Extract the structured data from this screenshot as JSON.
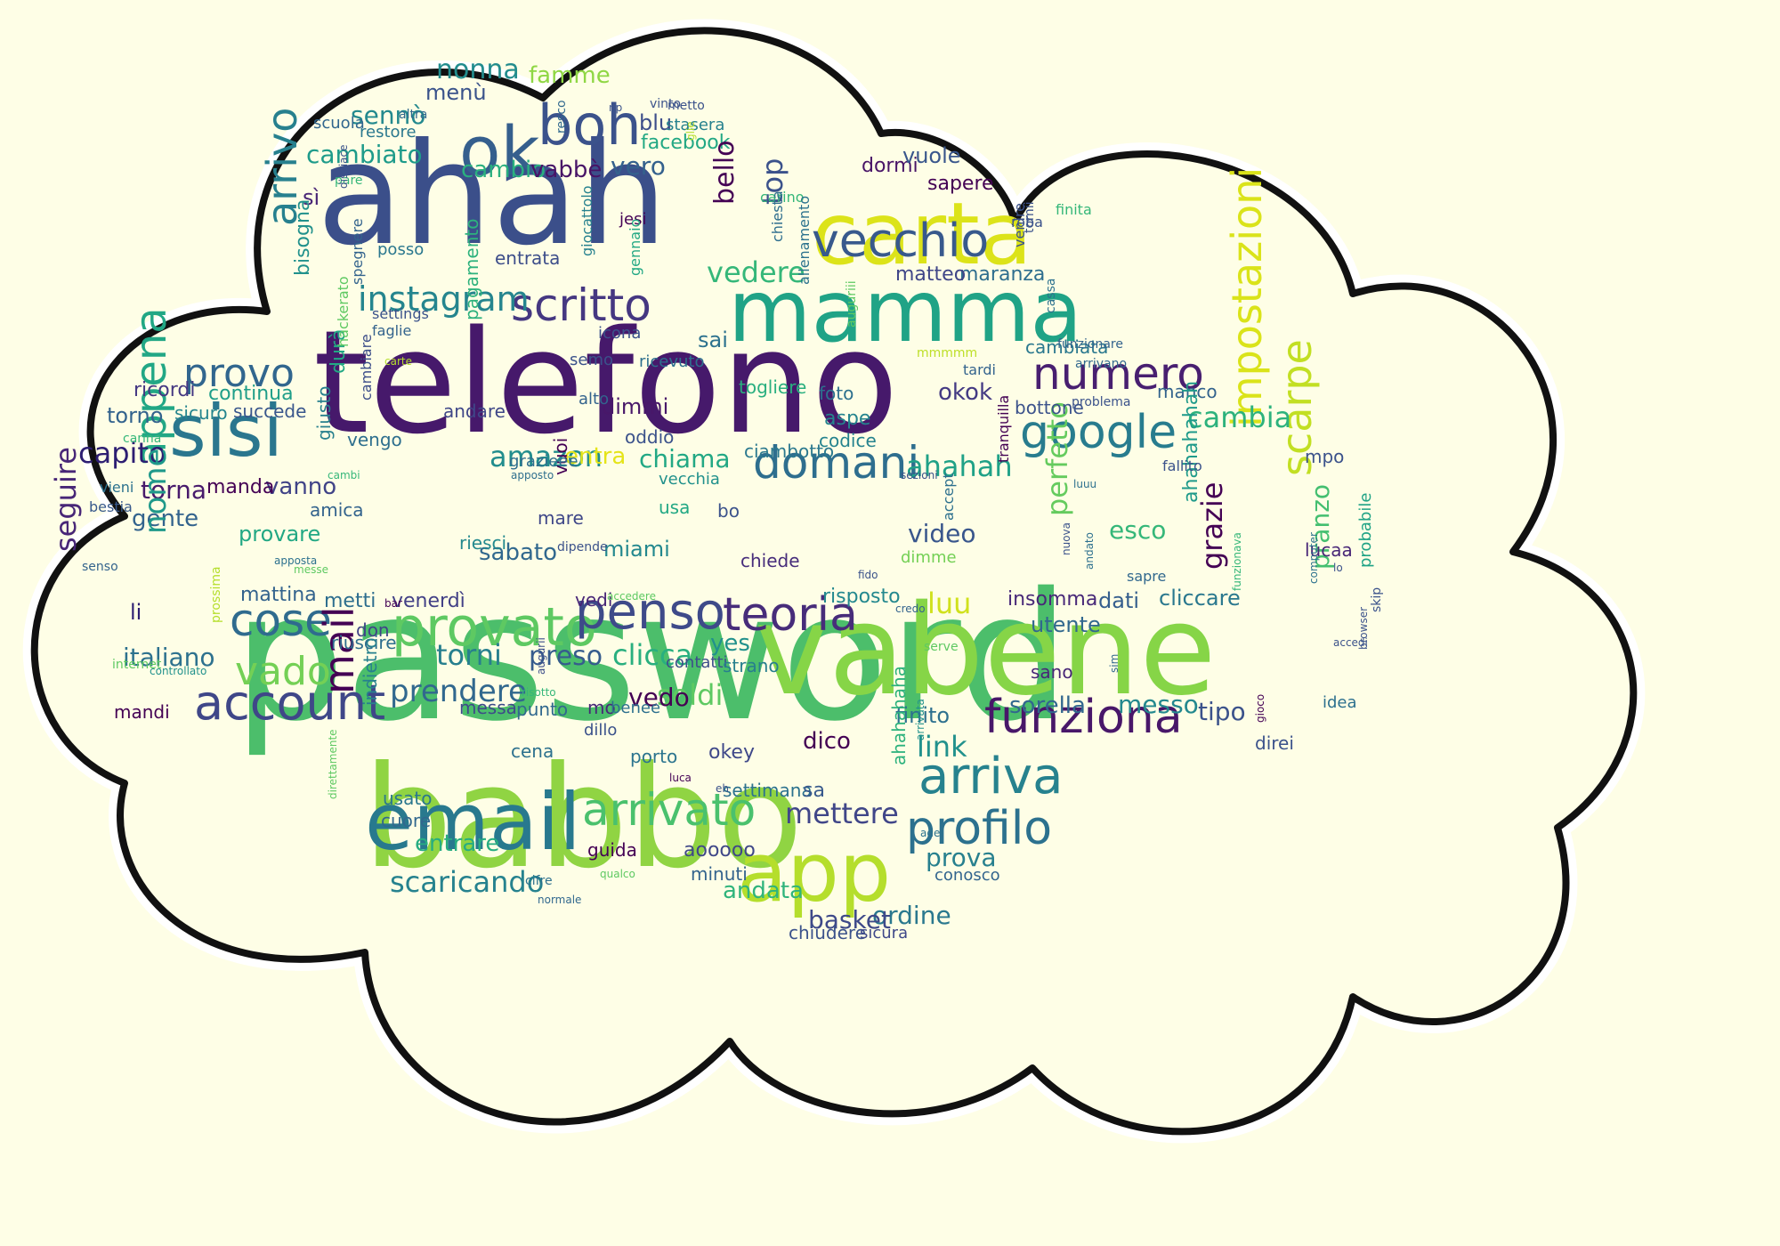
{
  "palette": {
    "background": "#fefee6",
    "cloud_fill": "#fefee6",
    "cloud_outline": "#111111",
    "cloud_halo": "#ffffff",
    "viridis_colors": [
      "#440154",
      "#3b528b",
      "#21918c",
      "#5ec962",
      "#fde725"
    ]
  },
  "words": [
    {
      "text": "password",
      "color": "#4cbe6b"
    },
    {
      "text": "telefono",
      "color": "#46196b"
    },
    {
      "text": "babbo",
      "color": "#90d443"
    },
    {
      "text": "ahah",
      "color": "#3b4f8a"
    },
    {
      "text": "vabene",
      "color": "#86d547"
    },
    {
      "text": "mamma",
      "color": "#20a386"
    },
    {
      "text": "carta",
      "color": "#dce319"
    },
    {
      "text": "email",
      "color": "#28798e"
    },
    {
      "text": "app",
      "color": "#b5de2c"
    },
    {
      "text": "sisi",
      "color": "#2a768e"
    },
    {
      "text": "ok",
      "color": "#355f8d"
    },
    {
      "text": "boh",
      "color": "#3b528b"
    },
    {
      "text": "vecchio",
      "color": "#38598c"
    },
    {
      "text": "scritto",
      "color": "#453781"
    },
    {
      "text": "numero",
      "color": "#481f70"
    },
    {
      "text": "google",
      "color": "#287c8e"
    },
    {
      "text": "domani",
      "color": "#2e6e8e"
    },
    {
      "text": "provato",
      "color": "#5ec962"
    },
    {
      "text": "penso",
      "color": "#3e4a89"
    },
    {
      "text": "teoria",
      "color": "#472c7a"
    },
    {
      "text": "funziona",
      "color": "#481769"
    },
    {
      "text": "arriva",
      "color": "#26828e"
    },
    {
      "text": "profilo",
      "color": "#2c718e"
    },
    {
      "text": "arrivato",
      "color": "#4ac16d"
    },
    {
      "text": "account",
      "color": "#3f4788"
    },
    {
      "text": "cose",
      "color": "#2f6b8e"
    },
    {
      "text": "impostazioni",
      "color": "#dae319"
    },
    {
      "text": "scarpe",
      "color": "#c2df23"
    },
    {
      "text": "appena",
      "color": "#22a785"
    },
    {
      "text": "instagram",
      "color": "#25858e"
    },
    {
      "text": "provo",
      "color": "#31668e"
    },
    {
      "text": "arrivo",
      "color": "#27808e"
    },
    {
      "text": "mail",
      "color": "#440154"
    },
    {
      "text": "vado",
      "color": "#74d055"
    },
    {
      "text": "prendere",
      "color": "#31688e"
    },
    {
      "text": "amazon",
      "color": "#228d8d"
    },
    {
      "text": "ahahah",
      "color": "#1fa187"
    },
    {
      "text": "cambia",
      "color": "#2db27d"
    },
    {
      "text": "grazie",
      "color": "#440154"
    },
    {
      "text": "perfetto",
      "color": "#65cb5e"
    },
    {
      "text": "luu",
      "color": "#d0e11c"
    },
    {
      "text": "torni",
      "color": "#277f8e"
    },
    {
      "text": "preso",
      "color": "#365c8d"
    },
    {
      "text": "clicca",
      "color": "#29af7f"
    },
    {
      "text": "soldi",
      "color": "#5ec962"
    },
    {
      "text": "link",
      "color": "#21918c"
    },
    {
      "text": "mettere",
      "color": "#404688"
    },
    {
      "text": "nonna",
      "color": "#228c8d"
    },
    {
      "text": "famme",
      "color": "#8fd744"
    },
    {
      "text": "menù",
      "color": "#3a538b"
    },
    {
      "text": "sennò",
      "color": "#23898e"
    },
    {
      "text": "cambiato",
      "color": "#1e9b8a"
    },
    {
      "text": "cambio",
      "color": "#2ab07f"
    },
    {
      "text": "vabbè",
      "color": "#481467"
    },
    {
      "text": "vero",
      "color": "#34618d"
    },
    {
      "text": "facebook",
      "color": "#22a884"
    },
    {
      "text": "blu",
      "color": "#3d4e8a"
    },
    {
      "text": "top",
      "color": "#3b528b"
    },
    {
      "text": "bello",
      "color": "#440154"
    },
    {
      "text": "vedere",
      "color": "#35b779"
    },
    {
      "text": "sì",
      "color": "#482576"
    },
    {
      "text": "capito",
      "color": "#2d1e72"
    },
    {
      "text": "torna",
      "color": "#481a6c"
    },
    {
      "text": "vanno",
      "color": "#404387"
    },
    {
      "text": "gente",
      "color": "#33638d"
    },
    {
      "text": "nome",
      "color": "#1f998a"
    },
    {
      "text": "seguire",
      "color": "#482677"
    },
    {
      "text": "italiano",
      "color": "#2d718e"
    },
    {
      "text": "torno",
      "color": "#33638d"
    },
    {
      "text": "ricordi",
      "color": "#453882"
    },
    {
      "text": "entra",
      "color": "#e5e419"
    },
    {
      "text": "chiama",
      "color": "#22a884"
    },
    {
      "text": "dimmi",
      "color": "#481769"
    },
    {
      "text": "okok",
      "color": "#443a83"
    },
    {
      "text": "sai",
      "color": "#2c718e"
    },
    {
      "text": "video",
      "color": "#39568c"
    },
    {
      "text": "esco",
      "color": "#35b779"
    },
    {
      "text": "sabato",
      "color": "#31688e"
    },
    {
      "text": "miami",
      "color": "#23888e"
    },
    {
      "text": "sorella",
      "color": "#31678e"
    },
    {
      "text": "messo",
      "color": "#23888e"
    },
    {
      "text": "tipo",
      "color": "#3b528b"
    },
    {
      "text": "prova",
      "color": "#27808e"
    },
    {
      "text": "ordine",
      "color": "#2a788e"
    },
    {
      "text": "andata",
      "color": "#2fb47c"
    },
    {
      "text": "scaricando",
      "color": "#26828e"
    },
    {
      "text": "entrare",
      "color": "#27ad81"
    },
    {
      "text": "yes",
      "color": "#21918c"
    },
    {
      "text": "basket",
      "color": "#3e4989"
    },
    {
      "text": "vedo",
      "color": "#440154"
    },
    {
      "text": "finito",
      "color": "#2d708e"
    },
    {
      "text": "pranzo",
      "color": "#44bf70"
    },
    {
      "text": "dati",
      "color": "#355e8d"
    },
    {
      "text": "cliccare",
      "color": "#2a788e"
    },
    {
      "text": "insomma",
      "color": "#482878"
    },
    {
      "text": "utente",
      "color": "#31688e"
    },
    {
      "text": "mattina",
      "color": "#33638d"
    },
    {
      "text": "metti",
      "color": "#2e6e8e"
    },
    {
      "text": "venerdì",
      "color": "#424086"
    },
    {
      "text": "risposto",
      "color": "#23888e"
    },
    {
      "text": "provare",
      "color": "#22a884"
    },
    {
      "text": "manda",
      "color": "#440154"
    },
    {
      "text": "durà",
      "color": "#22a884"
    },
    {
      "text": "bisogna",
      "color": "#21918c"
    },
    {
      "text": "continua",
      "color": "#1f9e89"
    },
    {
      "text": "succede",
      "color": "#39568c"
    },
    {
      "text": "sicuro",
      "color": "#25858e"
    },
    {
      "text": "vengo",
      "color": "#2e6f8e"
    },
    {
      "text": "andare",
      "color": "#3f4788"
    },
    {
      "text": "pagamento",
      "color": "#2db27d"
    },
    {
      "text": "oddio",
      "color": "#3b528b"
    },
    {
      "text": "togliere",
      "color": "#29af7f"
    },
    {
      "text": "foto",
      "color": "#2d708e"
    },
    {
      "text": "aspe",
      "color": "#25848e"
    },
    {
      "text": "codice",
      "color": "#25838e"
    },
    {
      "text": "ciambotto",
      "color": "#2a788e"
    },
    {
      "text": "bottone",
      "color": "#3b528b"
    },
    {
      "text": "manco",
      "color": "#33638d"
    },
    {
      "text": "cambiata",
      "color": "#2a788e"
    },
    {
      "text": "maranza",
      "color": "#2e6e8e"
    },
    {
      "text": "matteo",
      "color": "#404688"
    },
    {
      "text": "dormi",
      "color": "#481467"
    },
    {
      "text": "vuole",
      "color": "#39568c"
    },
    {
      "text": "sapere",
      "color": "#440154"
    },
    {
      "text": "ahahahahah",
      "color": "#1f9a8a"
    },
    {
      "text": "ahahahaha",
      "color": "#2db27d"
    },
    {
      "text": "chiede",
      "color": "#472d7b"
    },
    {
      "text": "dimme",
      "color": "#74d055"
    },
    {
      "text": "usa",
      "color": "#22a884"
    },
    {
      "text": "bo",
      "color": "#3b528b"
    },
    {
      "text": "contatti",
      "color": "#3d4e8a"
    },
    {
      "text": "strano",
      "color": "#277f8e"
    },
    {
      "text": "aooooo",
      "color": "#3f4788"
    },
    {
      "text": "minuti",
      "color": "#33638d"
    },
    {
      "text": "settimana",
      "color": "#2c728e"
    },
    {
      "text": "okey",
      "color": "#3f4889"
    },
    {
      "text": "porto",
      "color": "#2b748e"
    },
    {
      "text": "dico",
      "color": "#440154"
    },
    {
      "text": "sa",
      "color": "#38598c"
    },
    {
      "text": "chiudere",
      "color": "#3b528b"
    },
    {
      "text": "sicura",
      "color": "#3f4889"
    },
    {
      "text": "cena",
      "color": "#2d718e"
    },
    {
      "text": "punto",
      "color": "#31688e"
    },
    {
      "text": "messa",
      "color": "#3e4a89"
    },
    {
      "text": "usato",
      "color": "#2a778e"
    },
    {
      "text": "cuore",
      "color": "#31688e"
    },
    {
      "text": "guida",
      "color": "#440154"
    },
    {
      "text": "conosco",
      "color": "#32648e"
    },
    {
      "text": "riesci",
      "color": "#23898e"
    },
    {
      "text": "vuoi",
      "color": "#440154"
    },
    {
      "text": "vedi",
      "color": "#482677"
    },
    {
      "text": "don",
      "color": "#404387"
    },
    {
      "text": "riuscire",
      "color": "#2e6e8e"
    },
    {
      "text": "mare",
      "color": "#3f4788"
    },
    {
      "text": "amica",
      "color": "#33638d"
    },
    {
      "text": "giusto",
      "color": "#27808e"
    },
    {
      "text": "vecchia",
      "color": "#21918c"
    },
    {
      "text": "indietro",
      "color": "#27808e"
    },
    {
      "text": "dillo",
      "color": "#3b528b"
    },
    {
      "text": "mo",
      "color": "#482878"
    },
    {
      "text": "benee",
      "color": "#2d708e"
    },
    {
      "text": "grazieee",
      "color": "#2e6e8e"
    },
    {
      "text": "sano",
      "color": "#482677"
    },
    {
      "text": "li",
      "color": "#2d1e72"
    },
    {
      "text": "mpo",
      "color": "#3b528b"
    },
    {
      "text": "lucaa",
      "color": "#482677"
    },
    {
      "text": "probabile",
      "color": "#20a386"
    },
    {
      "text": "mandi",
      "color": "#440154"
    },
    {
      "text": "direi",
      "color": "#3b528b"
    },
    {
      "text": "idea",
      "color": "#2d708e"
    },
    {
      "text": "alto",
      "color": "#33638d"
    },
    {
      "text": "scuola",
      "color": "#31668e"
    },
    {
      "text": "restore",
      "color": "#2a788e"
    },
    {
      "text": "stasera",
      "color": "#26818e"
    },
    {
      "text": "entrata",
      "color": "#3d4e8a"
    },
    {
      "text": "posso",
      "color": "#2a778e"
    },
    {
      "text": "jesi",
      "color": "#440154"
    },
    {
      "text": "semo",
      "color": "#3b528b"
    },
    {
      "text": "icona",
      "color": "#3b528b"
    },
    {
      "text": "ricevuto",
      "color": "#2d708e"
    },
    {
      "text": "sapre",
      "color": "#31688e"
    },
    {
      "text": "fallito",
      "color": "#3b528b"
    },
    {
      "text": "vieni",
      "color": "#2c728e"
    },
    {
      "text": "bestia",
      "color": "#38598c"
    },
    {
      "text": "tranquilla",
      "color": "#440154"
    },
    {
      "text": "accept",
      "color": "#2d708e"
    },
    {
      "text": "carino",
      "color": "#35b779"
    },
    {
      "text": "chiesta",
      "color": "#2e6e8e"
    },
    {
      "text": "roba",
      "color": "#3b528b"
    },
    {
      "text": "finita",
      "color": "#35b779"
    },
    {
      "text": "funzionare",
      "color": "#33638d"
    },
    {
      "text": "arrivano",
      "color": "#31688e"
    },
    {
      "text": "problema",
      "color": "#3b528b"
    },
    {
      "text": "cassa",
      "color": "#2c718e"
    },
    {
      "text": "gennaio",
      "color": "#22a884"
    },
    {
      "text": "giocattolo",
      "color": "#26818e"
    },
    {
      "text": "spegnere",
      "color": "#33638d"
    },
    {
      "text": "settings",
      "color": "#3b528b"
    },
    {
      "text": "faglie",
      "color": "#33638d"
    },
    {
      "text": "hackerato",
      "color": "#5ec962"
    },
    {
      "text": "cambiare",
      "color": "#3d4e8a"
    },
    {
      "text": "allenamento",
      "color": "#2c728e"
    },
    {
      "text": "venire",
      "color": "#3b528b"
    },
    {
      "text": "tardi",
      "color": "#33638d"
    },
    {
      "text": "mmmmm",
      "color": "#bddf26"
    },
    {
      "text": "altra",
      "color": "#31688e"
    },
    {
      "text": "vinto",
      "color": "#3b528b"
    },
    {
      "text": "metto",
      "color": "#3b528b"
    },
    {
      "text": "resco",
      "color": "#31688e"
    },
    {
      "text": "pare",
      "color": "#35b779"
    },
    {
      "text": "dispiace",
      "color": "#3b528b"
    },
    {
      "text": "tomii",
      "color": "#3b528b"
    },
    {
      "text": "auguriii",
      "color": "#5ec962"
    },
    {
      "text": "carte",
      "color": "#b5de2c"
    },
    {
      "text": "carina",
      "color": "#35b779"
    },
    {
      "text": "cambi",
      "color": "#35b779"
    },
    {
      "text": "apposta",
      "color": "#2c718e"
    },
    {
      "text": "apposto",
      "color": "#2e6e8e"
    },
    {
      "text": "sezioni",
      "color": "#3b528b"
    },
    {
      "text": "senso",
      "color": "#33638d"
    },
    {
      "text": "prossima",
      "color": "#b5de2c"
    },
    {
      "text": "internet",
      "color": "#5ec962"
    },
    {
      "text": "controllato",
      "color": "#21918c"
    },
    {
      "text": "bar",
      "color": "#440154"
    },
    {
      "text": "messe",
      "color": "#5ec962"
    },
    {
      "text": "dipende",
      "color": "#3b528b"
    },
    {
      "text": "accedere",
      "color": "#5ec962"
    },
    {
      "text": "augurii",
      "color": "#3d4e8a"
    },
    {
      "text": "risotto",
      "color": "#35b779"
    },
    {
      "text": "direttamente",
      "color": "#5ec962"
    },
    {
      "text": "cifre",
      "color": "#2d708e"
    },
    {
      "text": "normale",
      "color": "#31688e"
    },
    {
      "text": "qualco",
      "color": "#5ec962"
    },
    {
      "text": "luca",
      "color": "#440154"
    },
    {
      "text": "eh",
      "color": "#3b528b"
    },
    {
      "text": "ade",
      "color": "#2c728e"
    },
    {
      "text": "sim",
      "color": "#31688e"
    },
    {
      "text": "gioco",
      "color": "#440154"
    },
    {
      "text": "arrivata",
      "color": "#21918c"
    },
    {
      "text": "browser",
      "color": "#3b528b"
    },
    {
      "text": "computer",
      "color": "#2c718e"
    },
    {
      "text": "skip",
      "color": "#3b528b"
    },
    {
      "text": "accedi",
      "color": "#3b528b"
    },
    {
      "text": "lo",
      "color": "#3b528b"
    },
    {
      "text": "funzionava",
      "color": "#35b779"
    },
    {
      "text": "credo",
      "color": "#33638d"
    },
    {
      "text": "serve",
      "color": "#5ec962"
    },
    {
      "text": "nuova",
      "color": "#3b528b"
    },
    {
      "text": "andato",
      "color": "#2d708e"
    },
    {
      "text": "fido",
      "color": "#3b528b"
    },
    {
      "text": "np",
      "color": "#3b528b"
    },
    {
      "text": "glie",
      "color": "#b5de2c"
    },
    {
      "text": "luuu",
      "color": "#2d708e"
    }
  ]
}
